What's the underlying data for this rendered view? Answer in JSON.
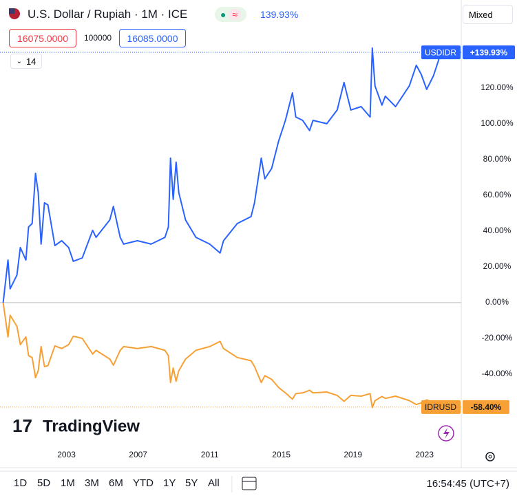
{
  "chart_data": {
    "type": "line",
    "title": "U.S. Dollar / Rupiah · 1M · ICE",
    "x": [
      1999.46,
      1999.73,
      1999.85,
      2000.23,
      2000.42,
      2000.73,
      2000.88,
      2001.08,
      2001.27,
      2001.42,
      2001.58,
      2001.77,
      2001.96,
      2002.35,
      2002.73,
      2003.12,
      2003.38,
      2003.88,
      2004.46,
      2004.65,
      2005.42,
      2005.62,
      2006.0,
      2006.19,
      2006.96,
      2007.73,
      2008.5,
      2008.69,
      2008.81,
      2008.96,
      2009.12,
      2009.27,
      2009.65,
      2010.23,
      2011.0,
      2011.58,
      2011.77,
      2012.54,
      2013.31,
      2013.5,
      2013.88,
      2014.08,
      2014.46,
      2014.85,
      2015.23,
      2015.62,
      2015.81,
      2016.19,
      2016.58,
      2016.77,
      2017.54,
      2018.12,
      2018.5,
      2018.88,
      2019.46,
      2019.96,
      2020.08,
      2020.23,
      2020.62,
      2020.81,
      2021.38,
      2022.15,
      2022.54,
      2022.81,
      2023.12,
      2023.5,
      2023.88,
      2024.08
    ],
    "series": [
      {
        "name": "USDIDR",
        "color": "#2962ff",
        "values": [
          0,
          23.8,
          7.7,
          15.4,
          30.8,
          23.8,
          42.3,
          44.2,
          72.3,
          61.5,
          32.7,
          55.8,
          54.6,
          31.9,
          34.6,
          30.8,
          23.1,
          25,
          40.4,
          36.5,
          46.2,
          53.8,
          36.5,
          32.7,
          34.6,
          32.7,
          36.5,
          42.3,
          80.8,
          57.7,
          78.5,
          61.5,
          46.2,
          36.5,
          32.7,
          27.7,
          34.6,
          44.2,
          48.1,
          55.8,
          80.8,
          69.2,
          75,
          90.4,
          101.9,
          117.3,
          103.8,
          101.9,
          96.2,
          101.9,
          100,
          107.7,
          123.1,
          107.7,
          109.6,
          103.8,
          142.3,
          121.2,
          110.4,
          115.4,
          109.6,
          121.2,
          132.7,
          127.7,
          119.2,
          126.9,
          138.5,
          139.93
        ],
        "value_labels": [
          null,
          null,
          null,
          null,
          null,
          null,
          null,
          null,
          null,
          null,
          null,
          null,
          null,
          null,
          null,
          null,
          null,
          null,
          null,
          null,
          null,
          null,
          null,
          null,
          null,
          null,
          null,
          null,
          null,
          null,
          null,
          null,
          null,
          null,
          null,
          null,
          null,
          null,
          null,
          null,
          null,
          null,
          null,
          null,
          null,
          null,
          null,
          null,
          null,
          null,
          null,
          null,
          null,
          null,
          null,
          null,
          null,
          null,
          null,
          null,
          null,
          null,
          null,
          null,
          null,
          null,
          null,
          "+139.93%"
        ]
      },
      {
        "name": "IDRUSD",
        "color": "#f7a035",
        "values": [
          0,
          -19.2,
          -7.1,
          -13.3,
          -23.5,
          -19.2,
          -29.7,
          -30.7,
          -42.0,
          -38.1,
          -24.6,
          -35.8,
          -35.3,
          -24.2,
          -25.7,
          -23.5,
          -18.8,
          -20,
          -28.8,
          -26.7,
          -31.6,
          -35.0,
          -26.7,
          -24.6,
          -25.7,
          -24.6,
          -26.7,
          -29.7,
          -44.7,
          -36.6,
          -44.0,
          -38.1,
          -31.6,
          -26.7,
          -24.6,
          -21.7,
          -25.7,
          -30.7,
          -32.5,
          -35.8,
          -44.7,
          -40.9,
          -42.9,
          -47.5,
          -50.5,
          -54.0,
          -50.9,
          -50.5,
          -49.0,
          -50.5,
          -50,
          -51.9,
          -55.2,
          -51.9,
          -52.3,
          -50.9,
          -58.7,
          -54.8,
          -52.5,
          -53.6,
          -52.3,
          -54.8,
          -57.0,
          -56.1,
          -54.4,
          -55.9,
          -58.1,
          -58.4
        ],
        "value_labels": [
          null,
          null,
          null,
          null,
          null,
          null,
          null,
          null,
          null,
          null,
          null,
          null,
          null,
          null,
          null,
          null,
          null,
          null,
          null,
          null,
          null,
          null,
          null,
          null,
          null,
          null,
          null,
          null,
          null,
          null,
          null,
          null,
          null,
          null,
          null,
          null,
          null,
          null,
          null,
          null,
          null,
          null,
          null,
          null,
          null,
          null,
          null,
          null,
          null,
          null,
          null,
          null,
          null,
          null,
          null,
          null,
          null,
          null,
          null,
          null,
          null,
          null,
          null,
          null,
          null,
          null,
          null,
          "-58.40%"
        ]
      }
    ],
    "xlim": [
      1999.4,
      2025.05
    ],
    "xticks": [
      2003,
      2007,
      2011,
      2015,
      2019,
      2023
    ],
    "ylim": [
      -82.7,
      169.2
    ],
    "yticks": [
      {
        "value": 120,
        "label": "120.00%"
      },
      {
        "value": 100,
        "label": "100.00%"
      },
      {
        "value": 80,
        "label": "80.00%"
      },
      {
        "value": 60,
        "label": "60.00%"
      },
      {
        "value": 40,
        "label": "40.00%"
      },
      {
        "value": 20,
        "label": "20.00%"
      },
      {
        "value": 0,
        "label": "0.00%"
      },
      {
        "value": -20,
        "label": "-20.00%"
      },
      {
        "value": -40,
        "label": "-40.00%"
      }
    ],
    "grid": false
  },
  "ui": {
    "change": "139.93%",
    "scale_mode": "Mixed",
    "bid": "16075.0000",
    "spread": "100000",
    "ask": "16085.0000",
    "indicator_length": "14",
    "logo": "TradingView",
    "ranges": [
      "1D",
      "5D",
      "1M",
      "3M",
      "6M",
      "YTD",
      "1Y",
      "5Y",
      "All"
    ],
    "clock": "16:54:45 (UTC+7)"
  }
}
